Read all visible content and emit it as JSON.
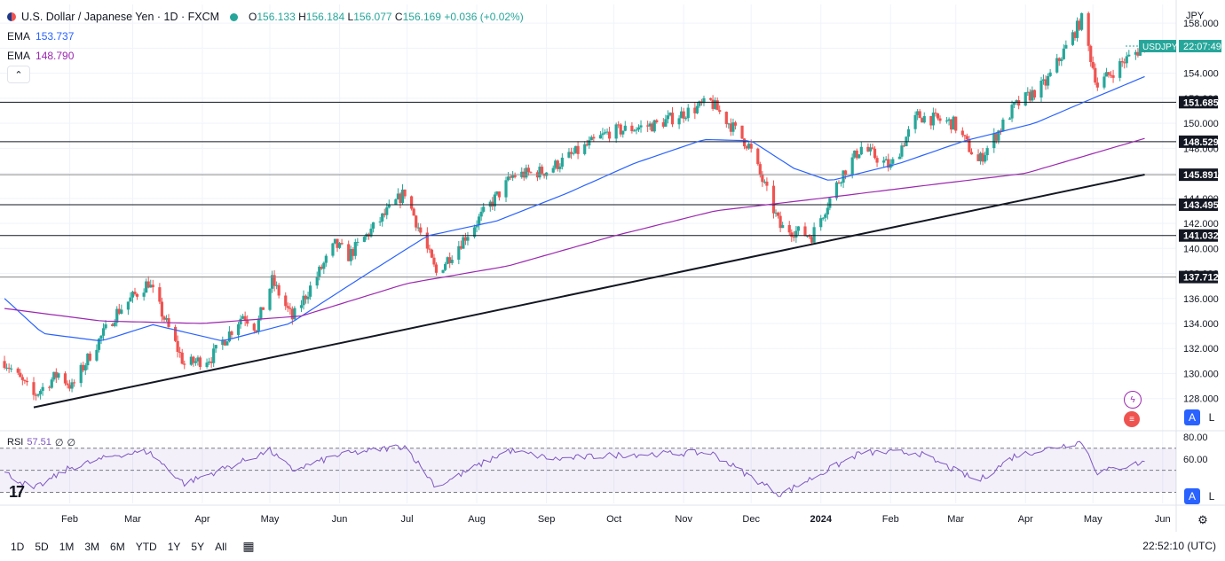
{
  "header": {
    "title": "U.S. Dollar / Japanese Yen · 1D · FXCM",
    "ohlc": {
      "o_label": "O",
      "o": "156.133",
      "h_label": "H",
      "h": "156.184",
      "l_label": "L",
      "l": "156.077",
      "c_label": "C",
      "c": "156.169",
      "change": "+0.036 (+0.02%)"
    },
    "ema_fast": {
      "label": "EMA",
      "value": "153.737",
      "color": "#2962ff"
    },
    "ema_slow": {
      "label": "EMA",
      "value": "148.790",
      "color": "#9c27b0"
    },
    "collapse_icon": "chevron-up-icon"
  },
  "currency": "JPY",
  "price_tag": {
    "symbol": "USDJPY",
    "countdown": "22:07:49",
    "color": "#26a69a"
  },
  "rsi": {
    "label": "RSI",
    "value": "57.51",
    "extra1": "∅",
    "extra2": "∅",
    "color": "#7e57c2"
  },
  "bottom": {
    "ranges": [
      "1D",
      "5D",
      "1M",
      "3M",
      "6M",
      "YTD",
      "1Y",
      "5Y",
      "All"
    ],
    "clock": "22:52:10 (UTC)",
    "compare_icon": "calendar-range-icon",
    "settings_icon": "gear-icon"
  },
  "buttons": {
    "auto": "A",
    "log": "L"
  },
  "chart_data": {
    "type": "candlestick",
    "colors": {
      "up": "#26a69a",
      "down": "#ef5350",
      "ema_fast": "#2962ff",
      "ema_slow": "#9c27b0",
      "rsi": "#7e57c2"
    },
    "ylim": [
      125.5,
      159.5
    ],
    "y_ticks": [
      "158.000",
      "156.000",
      "154.000",
      "152.000",
      "150.000",
      "148.000",
      "146.000",
      "144.000",
      "142.000",
      "140.000",
      "138.000",
      "136.000",
      "134.000",
      "132.000",
      "130.000",
      "128.000"
    ],
    "x_ticks": [
      "Feb",
      "Mar",
      "Apr",
      "May",
      "Jun",
      "Jul",
      "Aug",
      "Sep",
      "Oct",
      "Nov",
      "Dec",
      "2024",
      "Feb",
      "Mar",
      "Apr",
      "May",
      "Jun"
    ],
    "horizontal_levels": [
      "151.685",
      "148.529",
      "145.891",
      "143.495",
      "141.032",
      "137.712"
    ],
    "trendline": [
      {
        "date": "2023-01-16",
        "price": 127.3
      },
      {
        "date": "2024-05-24",
        "price": 145.9
      }
    ],
    "close_path": [
      {
        "date": "2023-01-03",
        "price": 131.0
      },
      {
        "date": "2023-01-16",
        "price": 128.2
      },
      {
        "date": "2023-01-27",
        "price": 130.0
      },
      {
        "date": "2023-02-02",
        "price": 128.9
      },
      {
        "date": "2023-02-10",
        "price": 131.5
      },
      {
        "date": "2023-02-22",
        "price": 134.9
      },
      {
        "date": "2023-03-08",
        "price": 137.3
      },
      {
        "date": "2023-03-24",
        "price": 130.7
      },
      {
        "date": "2023-04-05",
        "price": 131.3
      },
      {
        "date": "2023-04-19",
        "price": 134.7
      },
      {
        "date": "2023-04-25",
        "price": 133.7
      },
      {
        "date": "2023-05-02",
        "price": 137.4
      },
      {
        "date": "2023-05-11",
        "price": 134.4
      },
      {
        "date": "2023-05-30",
        "price": 140.3
      },
      {
        "date": "2023-06-05",
        "price": 139.4
      },
      {
        "date": "2023-06-30",
        "price": 144.5
      },
      {
        "date": "2023-07-14",
        "price": 138.0
      },
      {
        "date": "2023-07-28",
        "price": 141.2
      },
      {
        "date": "2023-08-17",
        "price": 145.8
      },
      {
        "date": "2023-09-01",
        "price": 146.2
      },
      {
        "date": "2023-09-29",
        "price": 149.3
      },
      {
        "date": "2023-10-20",
        "price": 149.9
      },
      {
        "date": "2023-11-13",
        "price": 151.7
      },
      {
        "date": "2023-11-30",
        "price": 148.2
      },
      {
        "date": "2023-12-14",
        "price": 141.7
      },
      {
        "date": "2023-12-28",
        "price": 141.0
      },
      {
        "date": "2024-01-10",
        "price": 145.8
      },
      {
        "date": "2024-01-19",
        "price": 148.1
      },
      {
        "date": "2024-02-01",
        "price": 146.5
      },
      {
        "date": "2024-02-13",
        "price": 150.6
      },
      {
        "date": "2024-02-29",
        "price": 150.0
      },
      {
        "date": "2024-03-11",
        "price": 146.9
      },
      {
        "date": "2024-03-27",
        "price": 151.3
      },
      {
        "date": "2024-04-10",
        "price": 153.2
      },
      {
        "date": "2024-04-26",
        "price": 158.3
      },
      {
        "date": "2024-05-03",
        "price": 153.0
      },
      {
        "date": "2024-05-15",
        "price": 155.0
      },
      {
        "date": "2024-05-24",
        "price": 156.17
      }
    ],
    "ema_fast": [
      {
        "date": "2023-01-03",
        "price": 136.0
      },
      {
        "date": "2023-01-20",
        "price": 133.2
      },
      {
        "date": "2023-02-15",
        "price": 132.6
      },
      {
        "date": "2023-03-10",
        "price": 133.9
      },
      {
        "date": "2023-04-10",
        "price": 132.6
      },
      {
        "date": "2023-05-10",
        "price": 134.0
      },
      {
        "date": "2023-06-10",
        "price": 137.6
      },
      {
        "date": "2023-07-10",
        "price": 141.0
      },
      {
        "date": "2023-08-10",
        "price": 142.2
      },
      {
        "date": "2023-09-10",
        "price": 144.4
      },
      {
        "date": "2023-10-10",
        "price": 146.8
      },
      {
        "date": "2023-11-10",
        "price": 148.7
      },
      {
        "date": "2023-12-01",
        "price": 148.6
      },
      {
        "date": "2023-12-20",
        "price": 146.4
      },
      {
        "date": "2024-01-05",
        "price": 145.4
      },
      {
        "date": "2024-02-05",
        "price": 146.8
      },
      {
        "date": "2024-03-05",
        "price": 148.6
      },
      {
        "date": "2024-04-05",
        "price": 150.0
      },
      {
        "date": "2024-05-01",
        "price": 152.0
      },
      {
        "date": "2024-05-24",
        "price": 153.737
      }
    ],
    "ema_slow": [
      {
        "date": "2023-01-03",
        "price": 135.2
      },
      {
        "date": "2023-02-15",
        "price": 134.2
      },
      {
        "date": "2023-04-01",
        "price": 134.0
      },
      {
        "date": "2023-05-15",
        "price": 134.6
      },
      {
        "date": "2023-07-01",
        "price": 137.2
      },
      {
        "date": "2023-08-15",
        "price": 138.6
      },
      {
        "date": "2023-10-01",
        "price": 141.0
      },
      {
        "date": "2023-11-15",
        "price": 143.0
      },
      {
        "date": "2024-01-01",
        "price": 144.0
      },
      {
        "date": "2024-02-15",
        "price": 145.0
      },
      {
        "date": "2024-04-01",
        "price": 146.0
      },
      {
        "date": "2024-05-24",
        "price": 148.79
      }
    ],
    "rsi_series": [
      {
        "date": "2023-01-03",
        "value": 48
      },
      {
        "date": "2023-01-16",
        "value": 33
      },
      {
        "date": "2023-02-01",
        "value": 52
      },
      {
        "date": "2023-02-22",
        "value": 64
      },
      {
        "date": "2023-03-08",
        "value": 67
      },
      {
        "date": "2023-03-24",
        "value": 38
      },
      {
        "date": "2023-04-19",
        "value": 58
      },
      {
        "date": "2023-05-01",
        "value": 68
      },
      {
        "date": "2023-05-11",
        "value": 50
      },
      {
        "date": "2023-06-01",
        "value": 64
      },
      {
        "date": "2023-06-30",
        "value": 72
      },
      {
        "date": "2023-07-14",
        "value": 35
      },
      {
        "date": "2023-08-15",
        "value": 68
      },
      {
        "date": "2023-09-05",
        "value": 60
      },
      {
        "date": "2023-10-03",
        "value": 64
      },
      {
        "date": "2023-11-13",
        "value": 66
      },
      {
        "date": "2023-12-14",
        "value": 28
      },
      {
        "date": "2024-01-19",
        "value": 66
      },
      {
        "date": "2024-02-13",
        "value": 66
      },
      {
        "date": "2024-03-11",
        "value": 40
      },
      {
        "date": "2024-03-27",
        "value": 63
      },
      {
        "date": "2024-04-26",
        "value": 76
      },
      {
        "date": "2024-05-03",
        "value": 48
      },
      {
        "date": "2024-05-24",
        "value": 57.51
      }
    ],
    "rsi_ylim": [
      20,
      85
    ],
    "rsi_ticks": [
      "80.00",
      "60.00"
    ],
    "rsi_bands": [
      70,
      50,
      30
    ]
  }
}
